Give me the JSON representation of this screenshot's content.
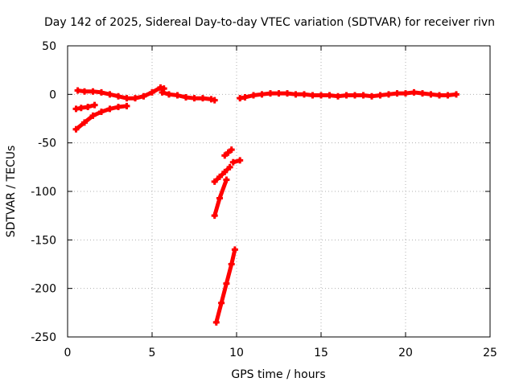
{
  "chart_data": {
    "type": "scatter",
    "title": "Day 142 of 2025, Sidereal Day-to-day VTEC variation (SDTVAR) for receiver rivn",
    "xlabel": "GPS time / hours",
    "ylabel": "SDTVAR / TECUs",
    "xlim": [
      0,
      25
    ],
    "ylim": [
      -250,
      50
    ],
    "x_ticks": [
      0,
      5,
      10,
      15,
      20,
      25
    ],
    "y_ticks": [
      50,
      0,
      -50,
      -100,
      -150,
      -200,
      -250
    ],
    "x_tick_labels": [
      "0",
      "5",
      "10",
      "15",
      "20",
      "25"
    ],
    "y_tick_labels": [
      "50",
      "0",
      "-50",
      "-100",
      "-150",
      "-200",
      "-250"
    ],
    "grid": true,
    "marker_color": "#ff0000",
    "series": [
      {
        "x": [
          0.6,
          1.0,
          1.5,
          2.0,
          2.5,
          3.0,
          3.5,
          4.0,
          4.5,
          5.0,
          5.5,
          5.7
        ],
        "y": [
          4,
          3,
          3,
          2,
          0,
          -2,
          -4,
          -4,
          -2,
          2,
          7,
          6
        ]
      },
      {
        "x": [
          0.5,
          0.8,
          1.2,
          1.6
        ],
        "y": [
          -15,
          -14,
          -13,
          -11
        ]
      },
      {
        "x": [
          0.5,
          1.0,
          1.5,
          2.0,
          2.5,
          3.0,
          3.5
        ],
        "y": [
          -36,
          -29,
          -22,
          -18,
          -15,
          -13,
          -12
        ]
      },
      {
        "x": [
          5.6,
          6.0,
          6.5,
          7.0,
          7.5,
          8.0,
          8.5,
          8.7
        ],
        "y": [
          2,
          0,
          -1,
          -3,
          -4,
          -4,
          -5,
          -6
        ]
      },
      {
        "x": [
          8.7,
          9.0,
          9.3,
          9.6
        ],
        "y": [
          -90,
          -85,
          -80,
          -75
        ]
      },
      {
        "x": [
          9.3,
          9.5,
          9.7
        ],
        "y": [
          -63,
          -60,
          -57
        ]
      },
      {
        "x": [
          8.7,
          9.0,
          9.4
        ],
        "y": [
          -125,
          -107,
          -88
        ]
      },
      {
        "x": [
          9.8,
          10.2
        ],
        "y": [
          -70,
          -68
        ]
      },
      {
        "x": [
          8.8,
          9.1,
          9.4,
          9.7,
          9.9
        ],
        "y": [
          -235,
          -215,
          -195,
          -175,
          -160
        ]
      },
      {
        "x": [
          10.2,
          10.5,
          11.0,
          11.5,
          12.0,
          12.5,
          13.0,
          13.5,
          14.0,
          14.5,
          15.0,
          15.5,
          16.0,
          16.5,
          17.0,
          17.5,
          18.0,
          18.5,
          19.0,
          19.5,
          20.0,
          20.5,
          21.0,
          21.5,
          22.0,
          22.5,
          23.0
        ],
        "y": [
          -4,
          -3,
          -1,
          0,
          1,
          1,
          1,
          0,
          0,
          -1,
          -1,
          -1,
          -2,
          -1,
          -1,
          -1,
          -2,
          -1,
          0,
          1,
          1,
          2,
          1,
          0,
          -1,
          -1,
          0
        ]
      }
    ]
  }
}
